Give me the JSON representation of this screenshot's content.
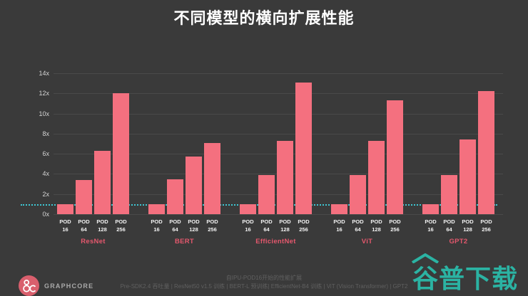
{
  "page": {
    "title": "不同模型的横向扩展性能"
  },
  "chart_data": {
    "type": "bar",
    "title": "不同模型的横向扩展性能",
    "xlabel": "",
    "ylabel": "",
    "ylim": [
      0,
      14
    ],
    "yticks": [
      0,
      2,
      4,
      6,
      8,
      10,
      12,
      14
    ],
    "ytick_suffix": "x",
    "grid": "horizontal",
    "legend_position": "none",
    "baseline_value": 1,
    "categories": [
      "POD 16",
      "POD 64",
      "POD 128",
      "POD 256"
    ],
    "series": [
      {
        "name": "ResNet",
        "values": [
          1.0,
          3.4,
          6.3,
          12.0
        ]
      },
      {
        "name": "BERT",
        "values": [
          1.0,
          3.5,
          5.7,
          7.1
        ]
      },
      {
        "name": "EfficientNet",
        "values": [
          1.0,
          3.9,
          7.3,
          13.1
        ]
      },
      {
        "name": "ViT",
        "values": [
          1.0,
          3.9,
          7.3,
          11.3
        ]
      },
      {
        "name": "GPT2",
        "values": [
          1.0,
          3.9,
          7.4,
          12.2
        ]
      }
    ],
    "colors": {
      "background": "#3a3a3a",
      "bar": "#f4707f",
      "gridline": "#4a4a4a",
      "baseline": "#3fc8d4",
      "group_label": "#e4586d",
      "axis_text": "#d6d6d6"
    }
  },
  "footer": {
    "brand": "GRAPHCORE",
    "note_line1": "自IPU-POD16开始的性能扩展",
    "note_line2": "Pre-SDK2.4 吞吐量 | ResNet50 v1.5 训练 | BERT-L 预训练| EfficientNet-B4 训练 | ViT (Vision Transformer) | GPT2"
  },
  "watermark": {
    "text": "谷普下载",
    "color": "#2bb3a3"
  }
}
